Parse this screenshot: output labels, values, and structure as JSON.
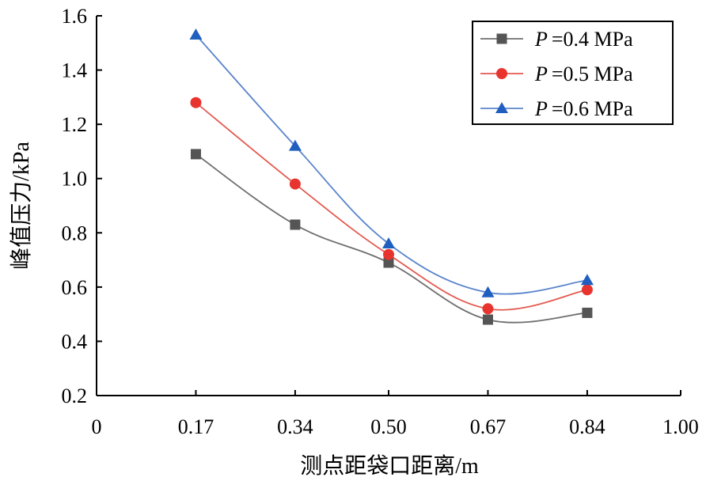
{
  "chart_data": {
    "type": "line",
    "xlabel": "测点距袋口距离/m",
    "ylabel": "峰值压力/kPa",
    "xlim": [
      0,
      1.0
    ],
    "ylim": [
      0.2,
      1.6
    ],
    "x_ticks": [
      0,
      0.17,
      0.34,
      0.5,
      0.67,
      0.84,
      1.0
    ],
    "x_tick_labels": [
      "0",
      "0.17",
      "0.34",
      "0.50",
      "0.67",
      "0.84",
      "1.00"
    ],
    "y_ticks": [
      0.2,
      0.4,
      0.6,
      0.8,
      1.0,
      1.2,
      1.4,
      1.6
    ],
    "y_tick_labels": [
      "0.2",
      "0.4",
      "0.6",
      "0.8",
      "1.0",
      "1.2",
      "1.4",
      "1.6"
    ],
    "x": [
      0.17,
      0.34,
      0.5,
      0.67,
      0.84
    ],
    "grid": false,
    "legend_position": "top-right",
    "series": [
      {
        "name": "P =0.4 MPa",
        "legend_prefix": "P",
        "legend_suffix": "=0.4 MPa",
        "values": [
          1.09,
          0.83,
          0.69,
          0.48,
          0.505
        ],
        "color": "#555555",
        "line_color": "#6e6e6e",
        "marker": "square"
      },
      {
        "name": "P =0.5 MPa",
        "legend_prefix": "P",
        "legend_suffix": "=0.5 MPa",
        "values": [
          1.28,
          0.98,
          0.72,
          0.52,
          0.59
        ],
        "color": "#e8342f",
        "line_color": "#e35a50",
        "marker": "circle"
      },
      {
        "name": "P =0.6 MPa",
        "legend_prefix": "P",
        "legend_suffix": "=0.6 MPa",
        "values": [
          1.53,
          1.12,
          0.76,
          0.58,
          0.625
        ],
        "color": "#1f5fbf",
        "line_color": "#5a84cc",
        "marker": "triangle"
      }
    ]
  }
}
